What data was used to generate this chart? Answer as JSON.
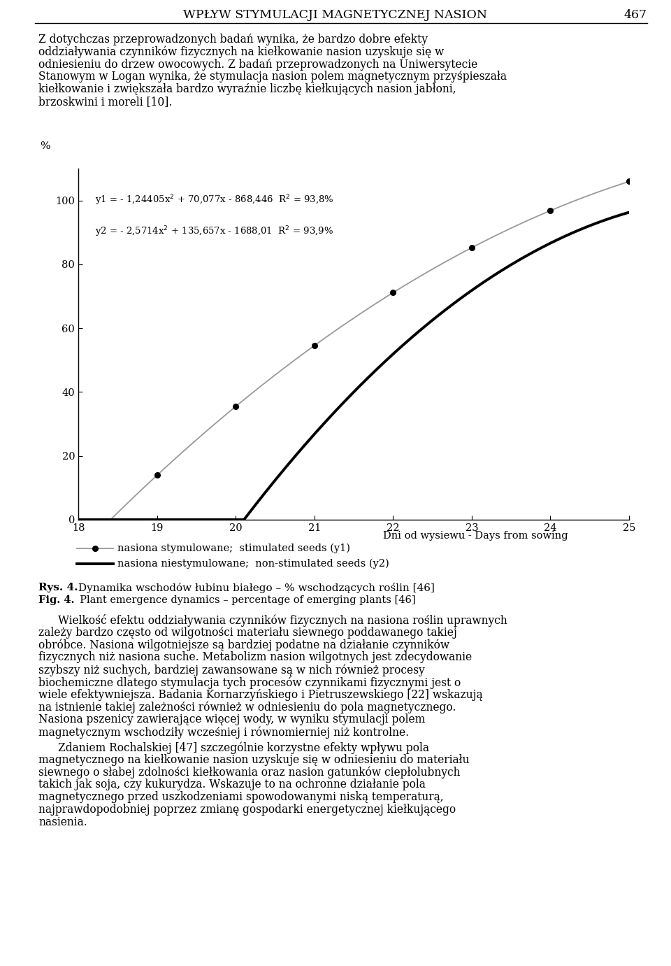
{
  "title": "WPŁYW STYMULACJI MAGNETYCZNEJ NASION",
  "page_number": "467",
  "para1": "Z dotychczas przeprowadzonych badań wynika, że bardzo dobre efekty oddziaływania czynników fizycznych na kiełkowanie nasion uzyskuje się w odniesieniu do drzew owocowych. Z badań przeprowadzonych na Uniwersytecie Stanowym w Logan wynika, że stymulacja nasion polem magnetycznym przyśpieszała kiełkowanie i zwiększała bardzo wyraźnie liczbę kiełkujących nasion jabłoni, brzoskwini i moreli [10].",
  "xlabel": "Dni od wysiewu - Days from sowing",
  "ylabel": "%",
  "xlim": [
    18,
    25
  ],
  "ylim": [
    0,
    110
  ],
  "yticks": [
    0,
    20,
    40,
    60,
    80,
    100
  ],
  "xticks": [
    18,
    19,
    20,
    21,
    22,
    23,
    24,
    25
  ],
  "legend1": "nasiona stymulowane;  stimulated seeds (y1)",
  "legend2": "nasiona niestymulowane;  non-stimulated seeds (y2)",
  "fig4_pl": "Rys. 4. Dynamika wschodów łubinu białego – % wschodzących roślin [46]",
  "fig4_en": "Fig. 4.  Plant emergence dynamics – percentage of emerging plants [46]",
  "para2": "Wielkość efektu oddziaływania czynników fizycznych na nasiona roślin uprawnych zależy bardzo często od wilgotności materiału siewnego poddawanego takiej obróbce. Nasiona wilgotniejsze są bardziej podatne na działanie czynników fizycznych niż nasiona suche. Metabolizm nasion wilgotnych jest zdecydowanie szybszy niż suchych, bardziej zawansowane są w nich również procesy biochemiczne dlatego stymulacja tych procesów czynnikami fizycznymi jest o wiele efektywniejsza. Badania Kornarzyńskiego i Pietruszewskiego [22] wskazują na istnienie takiej zależności również w odniesieniu do pola magnetycznego. Nasiona pszenicy zawierające więcej wody, w wyniku stymulacji polem magnetycznym wschodziły wcześniej i równomierniej niż kontrolne.",
  "para3": "Zdaniem Rochalskiej [47] szczególnie korzystne efekty wpływu pola magnetycznego na kiełkowanie nasion uzyskuje się w odniesieniu do materiału siewnego o słabej zdolności kiełkowania oraz nasion gatunków ciepłolubnych takich jak soja, czy kukurydza. Wskazuje to na ochronne działanie pola magnetycznego przed uszkodzeniami spowodowanymi niską temperaturą, najprawdopodobniej poprzez zmianę gospodarki energetycznej kiełkującego nasienia.",
  "bg_color": "#ffffff",
  "text_color": "#000000",
  "line1_color": "#999999",
  "line2_color": "#000000"
}
